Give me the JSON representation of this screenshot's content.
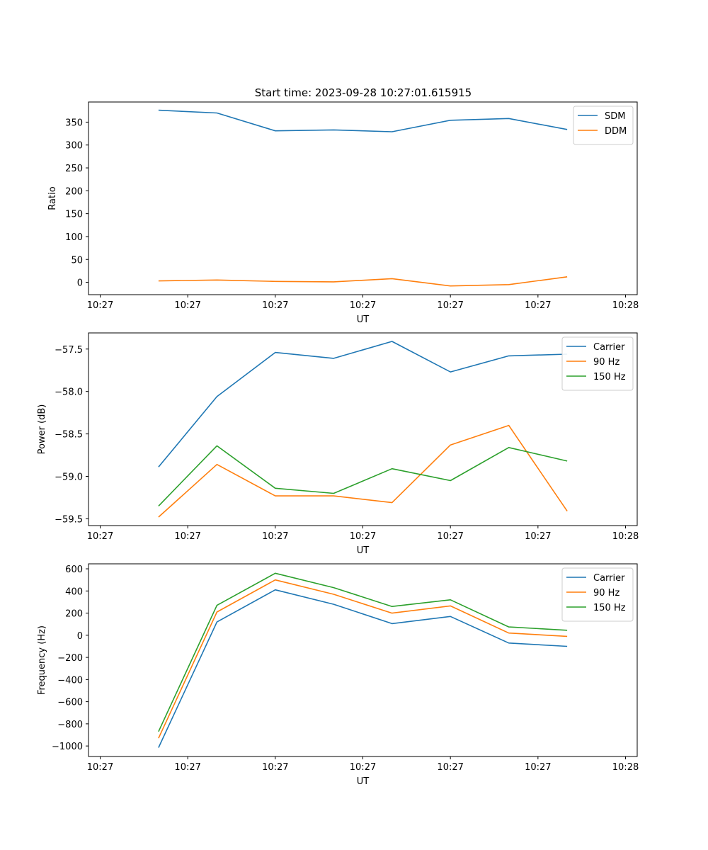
{
  "figure_title": "Start time: 2023-09-28 10:27:01.615915",
  "colors": {
    "blue": "#1f77b4",
    "orange": "#ff7f0e",
    "green": "#2ca02c"
  },
  "chart_data": [
    {
      "type": "line",
      "ylabel": "Ratio",
      "xlabel": "UT",
      "x": [
        1,
        2,
        3,
        4,
        5,
        6,
        7,
        8
      ],
      "xlim": [
        -0.2,
        9.2
      ],
      "x_ticks": [
        0,
        1.5,
        3,
        4.5,
        6,
        7.5,
        9
      ],
      "x_tick_labels": [
        "10:27",
        "10:27",
        "10:27",
        "10:27",
        "10:27",
        "10:27",
        "10:28"
      ],
      "ylim": [
        -27,
        394
      ],
      "y_ticks": [
        0,
        50,
        100,
        150,
        200,
        250,
        300,
        350
      ],
      "y_tick_labels": [
        "0",
        "50",
        "100",
        "150",
        "200",
        "250",
        "300",
        "350"
      ],
      "legend": "top-right",
      "series": [
        {
          "name": "SDM",
          "color": "#1f77b4",
          "values": [
            376,
            370,
            331,
            333,
            329,
            354,
            358,
            334
          ]
        },
        {
          "name": "DDM",
          "color": "#ff7f0e",
          "values": [
            3,
            5,
            2,
            1,
            8,
            -8,
            -5,
            12
          ]
        }
      ]
    },
    {
      "type": "line",
      "ylabel": "Power (dB)",
      "xlabel": "UT",
      "x": [
        1,
        2,
        3,
        4,
        5,
        6,
        7,
        8
      ],
      "xlim": [
        -0.2,
        9.2
      ],
      "x_ticks": [
        0,
        1.5,
        3,
        4.5,
        6,
        7.5,
        9
      ],
      "x_tick_labels": [
        "10:27",
        "10:27",
        "10:27",
        "10:27",
        "10:27",
        "10:27",
        "10:28"
      ],
      "ylim": [
        -59.58,
        -57.31
      ],
      "y_ticks": [
        -57.5,
        -58.0,
        -58.5,
        -59.0,
        -59.5
      ],
      "y_tick_labels": [
        "−57.5",
        "−58.0",
        "−58.5",
        "−59.0",
        "−59.5"
      ],
      "legend": "top-right",
      "series": [
        {
          "name": "Carrier",
          "color": "#1f77b4",
          "values": [
            -58.89,
            -58.06,
            -57.54,
            -57.61,
            -57.41,
            -57.77,
            -57.58,
            -57.56
          ]
        },
        {
          "name": "90 Hz",
          "color": "#ff7f0e",
          "values": [
            -59.48,
            -58.86,
            -59.23,
            -59.23,
            -59.31,
            -58.63,
            -58.4,
            -59.41
          ]
        },
        {
          "name": "150 Hz",
          "color": "#2ca02c",
          "values": [
            -59.35,
            -58.64,
            -59.14,
            -59.2,
            -58.91,
            -59.05,
            -58.66,
            -58.82
          ]
        }
      ]
    },
    {
      "type": "line",
      "ylabel": "Frequency (Hz)",
      "xlabel": "UT",
      "x": [
        1,
        2,
        3,
        4,
        5,
        6,
        7,
        8
      ],
      "xlim": [
        -0.2,
        9.2
      ],
      "x_ticks": [
        0,
        1.5,
        3,
        4.5,
        6,
        7.5,
        9
      ],
      "x_tick_labels": [
        "10:27",
        "10:27",
        "10:27",
        "10:27",
        "10:27",
        "10:27",
        "10:28"
      ],
      "ylim": [
        -1095,
        645
      ],
      "y_ticks": [
        600,
        400,
        200,
        0,
        -200,
        -400,
        -600,
        -800,
        -1000
      ],
      "y_tick_labels": [
        "600",
        "400",
        "200",
        "0",
        "−200",
        "−400",
        "−600",
        "−800",
        "−1000"
      ],
      "legend": "top-right",
      "series": [
        {
          "name": "Carrier",
          "color": "#1f77b4",
          "values": [
            -1015,
            120,
            410,
            280,
            105,
            170,
            -70,
            -100
          ]
        },
        {
          "name": "90 Hz",
          "color": "#ff7f0e",
          "values": [
            -930,
            210,
            500,
            370,
            200,
            265,
            20,
            -10
          ]
        },
        {
          "name": "150 Hz",
          "color": "#2ca02c",
          "values": [
            -870,
            270,
            560,
            430,
            260,
            320,
            75,
            45
          ]
        }
      ]
    }
  ]
}
